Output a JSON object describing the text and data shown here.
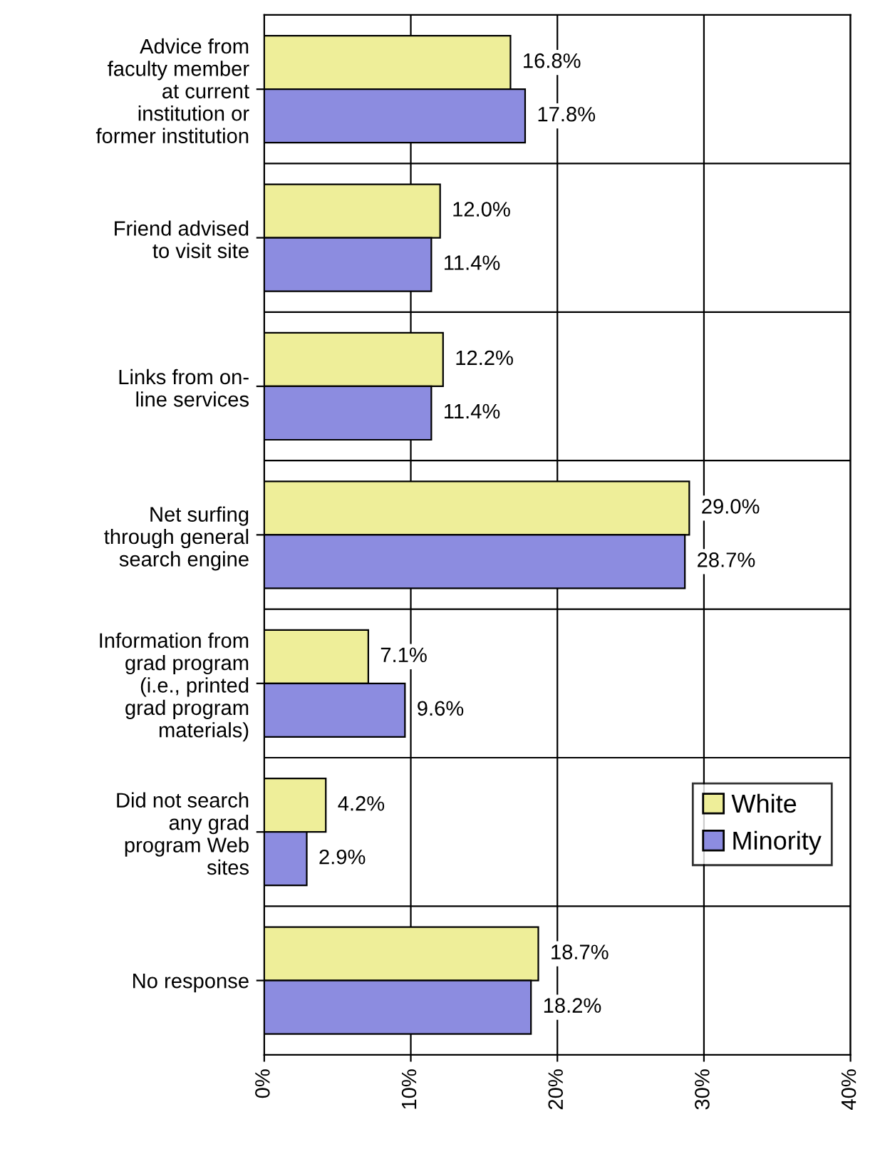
{
  "chart_data": {
    "type": "bar",
    "orientation": "horizontal",
    "categories": [
      "Advice from\nfaculty member\nat current\ninstitution or\nformer institution",
      "Friend advised\nto visit site",
      "Links from on-\nline services",
      "Net surfing\nthrough general\nsearch engine",
      "Information from\ngrad program\n(i.e., printed\ngrad program\nmaterials)",
      "Did not search\nany grad\nprogram Web\nsites",
      "No response"
    ],
    "series": [
      {
        "name": "White",
        "color": "#eeee99",
        "values": [
          16.8,
          12.0,
          12.2,
          29.0,
          7.1,
          4.2,
          18.7
        ],
        "value_labels": [
          "16.8%",
          "12.0%",
          "12.2%",
          "29.0%",
          "7.1%",
          "4.2%",
          "18.7%"
        ]
      },
      {
        "name": "Minority",
        "color": "#8c8ce0",
        "values": [
          17.8,
          11.4,
          11.4,
          28.7,
          9.6,
          2.9,
          18.2
        ],
        "value_labels": [
          "17.8%",
          "11.4%",
          "11.4%",
          "28.7%",
          "9.6%",
          "2.9%",
          "18.2%"
        ]
      }
    ],
    "xlim": [
      0,
      40
    ],
    "xticks": [
      {
        "value": 0,
        "label": "0%"
      },
      {
        "value": 10,
        "label": "10%"
      },
      {
        "value": 20,
        "label": "20%"
      },
      {
        "value": 30,
        "label": "30%"
      },
      {
        "value": 40,
        "label": "40%"
      }
    ],
    "grid": true,
    "legend": "bottom right"
  }
}
